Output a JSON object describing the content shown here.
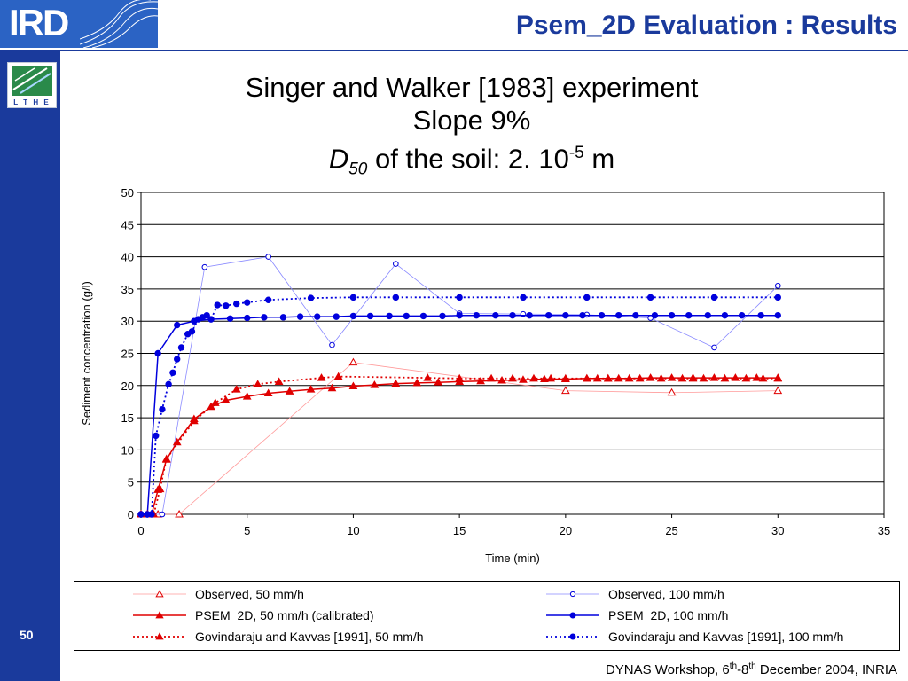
{
  "header": {
    "title": "Psem_2D Evaluation : Results",
    "logo_text": "IRD",
    "side_logo_text": "L T H E"
  },
  "slide_title": {
    "line1": "Singer and Walker [1983] experiment",
    "line2": "Slope 9%",
    "d": "D",
    "d_sub": "50",
    "line3_rest": " of the soil: 2. 10",
    "exp": "-5",
    "unit": " m"
  },
  "slide_number": "50",
  "footer": {
    "pre": "DYNAS Workshop, 6",
    "sup1": "th",
    "mid": "-8",
    "sup2": "th",
    "post": " December 2004, INRIA"
  },
  "colors": {
    "brand_blue": "#1a3a9c",
    "red": "#e00000",
    "blue": "#0000dd",
    "light_red": "#ff9a9a",
    "light_blue": "#8a8aff"
  },
  "chart_data": {
    "type": "line",
    "xlabel": "Time (min)",
    "ylabel": "Sediment concentration (g/l)",
    "xlim": [
      0,
      35
    ],
    "ylim": [
      0,
      50
    ],
    "xticks": [
      0,
      5,
      10,
      15,
      20,
      25,
      30,
      35
    ],
    "yticks": [
      0,
      5,
      10,
      15,
      20,
      25,
      30,
      35,
      40,
      45,
      50
    ],
    "grid": "horizontal",
    "legend_placement": "bottom",
    "series": [
      {
        "name": "Observed, 50 mm/h",
        "color": "#e00000",
        "line": "thin",
        "marker": "triangle-open",
        "x": [
          0,
          0.3,
          0.8,
          1.8,
          10,
          20,
          25,
          30
        ],
        "y": [
          0,
          0,
          0,
          0,
          23.6,
          19.2,
          18.9,
          19.2
        ]
      },
      {
        "name": "Observed, 100 mm/h",
        "color": "#0000dd",
        "line": "thin",
        "marker": "circle-open",
        "x": [
          0,
          0.5,
          1,
          3,
          6,
          9,
          12,
          15,
          18,
          21,
          24,
          27,
          30
        ],
        "y": [
          0,
          0,
          0,
          38.4,
          40,
          26.3,
          38.9,
          31.2,
          31.1,
          31,
          30.5,
          25.9,
          35.5
        ]
      },
      {
        "name": "PSEM_2D, 50 mm/h (calibrated)",
        "color": "#e00000",
        "line": "solid",
        "marker": "triangle",
        "x": [
          0,
          0.5,
          0.8,
          1.2,
          1.7,
          2.5,
          3.3,
          4,
          5,
          6,
          7,
          8,
          9,
          10,
          11,
          12,
          13,
          14,
          15,
          16,
          17,
          18,
          19,
          20,
          21,
          22,
          23,
          24,
          25,
          26,
          27,
          28,
          29,
          30
        ],
        "y": [
          0,
          0,
          3.8,
          8.5,
          11.2,
          14.8,
          16.7,
          17.7,
          18.3,
          18.8,
          19.1,
          19.4,
          19.6,
          19.9,
          20.1,
          20.3,
          20.4,
          20.5,
          20.6,
          20.7,
          20.8,
          20.9,
          21,
          21,
          21.1,
          21.1,
          21.1,
          21.2,
          21.2,
          21.2,
          21.2,
          21.2,
          21.2,
          21.2
        ]
      },
      {
        "name": "PSEM_2D, 100 mm/h",
        "color": "#0000dd",
        "line": "solid",
        "marker": "circle",
        "x": [
          0,
          0.3,
          0.8,
          1.7,
          2.5,
          3.3,
          4.2,
          5,
          5.8,
          6.7,
          7.5,
          8.3,
          9.2,
          10,
          10.8,
          11.7,
          12.5,
          13.3,
          14.2,
          15,
          15.8,
          16.7,
          17.5,
          18.3,
          19.2,
          20,
          20.8,
          21.7,
          22.5,
          23.3,
          24.2,
          25,
          25.8,
          26.7,
          27.5,
          28.3,
          29.2,
          30
        ],
        "y": [
          0,
          0,
          25,
          29.4,
          30,
          30.3,
          30.4,
          30.5,
          30.6,
          30.6,
          30.7,
          30.7,
          30.7,
          30.8,
          30.8,
          30.8,
          30.8,
          30.8,
          30.8,
          30.9,
          30.9,
          30.9,
          30.9,
          30.9,
          30.9,
          30.9,
          30.9,
          30.9,
          30.9,
          30.9,
          30.9,
          30.9,
          30.9,
          30.9,
          30.9,
          30.9,
          30.9,
          30.9
        ]
      },
      {
        "name": "Govindaraju and Kavvas [1991], 50 mm/h",
        "color": "#e00000",
        "line": "dotted",
        "marker": "triangle",
        "x": [
          0,
          0.3,
          0.6,
          0.9,
          1.2,
          2.5,
          3.5,
          4.5,
          5.5,
          6.5,
          8.5,
          9.3,
          13.5,
          15,
          16.5,
          17.5,
          18.5,
          19.3,
          20,
          21,
          21.5,
          22,
          22.5,
          23.5,
          24.5,
          25.5,
          26,
          26.5,
          27.5,
          28.5,
          29.3,
          30
        ],
        "y": [
          0,
          0,
          0,
          3.9,
          8.6,
          14.5,
          17.3,
          19.4,
          20.2,
          20.6,
          21.2,
          21.4,
          21.2,
          21.1,
          21.1,
          21.1,
          21.1,
          21.1,
          21.1,
          21.1,
          21.1,
          21.1,
          21.1,
          21.1,
          21.1,
          21.1,
          21.1,
          21.1,
          21.1,
          21.1,
          21.1,
          21.1
        ]
      },
      {
        "name": "Govindaraju and Kavvas [1991], 100 mm/h",
        "color": "#0000dd",
        "line": "dotted",
        "marker": "circle",
        "x": [
          0,
          0.3,
          0.5,
          0.7,
          1,
          1.3,
          1.5,
          1.7,
          1.9,
          2.2,
          2.4,
          2.7,
          2.9,
          3.1,
          3.3,
          3.6,
          4,
          4.5,
          5,
          6,
          8,
          10,
          12,
          15,
          18,
          21,
          24,
          27,
          30
        ],
        "y": [
          0,
          0,
          0,
          12.2,
          16.3,
          20.2,
          22,
          24.1,
          25.9,
          28,
          28.4,
          30.3,
          30.6,
          30.9,
          30.3,
          32.5,
          32.4,
          32.7,
          32.9,
          33.3,
          33.6,
          33.7,
          33.7,
          33.7,
          33.7,
          33.7,
          33.7,
          33.7,
          33.7
        ]
      }
    ]
  }
}
